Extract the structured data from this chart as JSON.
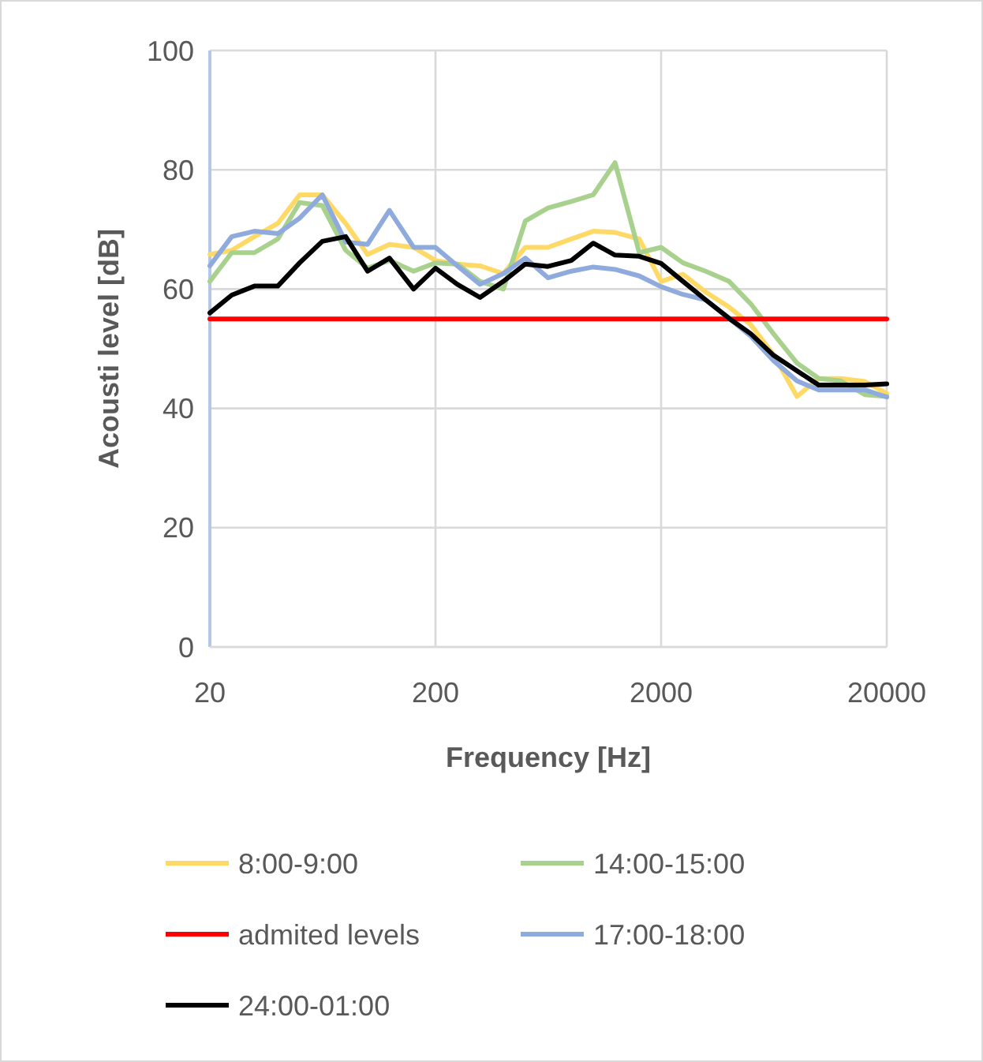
{
  "chart_data": {
    "type": "line",
    "xlabel": "Frequency [Hz]",
    "ylabel": "Acousti level [dB]",
    "log": "x",
    "x": [
      20,
      25,
      31.5,
      40,
      50,
      63,
      80,
      100,
      125,
      160,
      200,
      250,
      315,
      400,
      500,
      630,
      800,
      1000,
      1250,
      1600,
      2000,
      2500,
      3150,
      4000,
      5000,
      6300,
      8000,
      10000,
      12500,
      16000,
      20000
    ],
    "xlim": [
      20,
      20000
    ],
    "xticks": [
      20,
      200,
      2000,
      20000
    ],
    "ylim": [
      0,
      100
    ],
    "yticks": [
      0,
      20,
      40,
      60,
      80,
      100
    ],
    "grid": true,
    "legend": "bottom",
    "marker": "none",
    "line_style": "solid",
    "series": [
      {
        "name": "8:00-9:00",
        "color": "#ffd966",
        "values": [
          65.8,
          66.5,
          68.8,
          71,
          75.8,
          75.8,
          71,
          65.8,
          67.5,
          67,
          64.8,
          64.2,
          63.9,
          62.6,
          67,
          67,
          68.4,
          69.7,
          69.5,
          68.4,
          61.3,
          62.5,
          59.5,
          57,
          54,
          49,
          42,
          45,
          45,
          44.5,
          42.5
        ]
      },
      {
        "name": "14:00-15:00",
        "color": "#a9d18e",
        "values": [
          61.3,
          66.1,
          66.1,
          68.4,
          74.5,
          74,
          66.5,
          63.5,
          64.8,
          63,
          64.4,
          64.2,
          61.3,
          60,
          71.4,
          73.6,
          74.7,
          75.8,
          81.2,
          66.1,
          67,
          64.4,
          63,
          61.3,
          57.5,
          52.5,
          47.6,
          45,
          44.6,
          42.3,
          42
        ]
      },
      {
        "name": "admited levels",
        "color": "#ff0000",
        "values": [
          55,
          55,
          55,
          55,
          55,
          55,
          55,
          55,
          55,
          55,
          55,
          55,
          55,
          55,
          55,
          55,
          55,
          55,
          55,
          55,
          55,
          55,
          55,
          55,
          55,
          55,
          55,
          55,
          55,
          55,
          55
        ]
      },
      {
        "name": "17:00-18:00",
        "color": "#8faadc",
        "values": [
          63.9,
          68.8,
          69.7,
          69.3,
          71.9,
          75.8,
          67.9,
          67.5,
          73.2,
          67,
          67,
          63.9,
          60.8,
          62.6,
          65.2,
          61.9,
          63,
          63.7,
          63.3,
          62.2,
          60.4,
          59.1,
          58.2,
          55.1,
          52.1,
          48,
          44.6,
          43.1,
          43.1,
          43.1,
          41.9
        ]
      },
      {
        "name": "24:00-01:00",
        "color": "#000000",
        "values": [
          56,
          59,
          60.5,
          60.5,
          64.4,
          68,
          68.8,
          63,
          65.2,
          60,
          63.5,
          60.8,
          58.6,
          61.3,
          64.2,
          63.8,
          64.8,
          67.7,
          65.7,
          65.5,
          64.3,
          61.3,
          58.2,
          55.1,
          52.5,
          48.9,
          46.3,
          43.9,
          43.9,
          43.9,
          44.1
        ]
      }
    ]
  }
}
